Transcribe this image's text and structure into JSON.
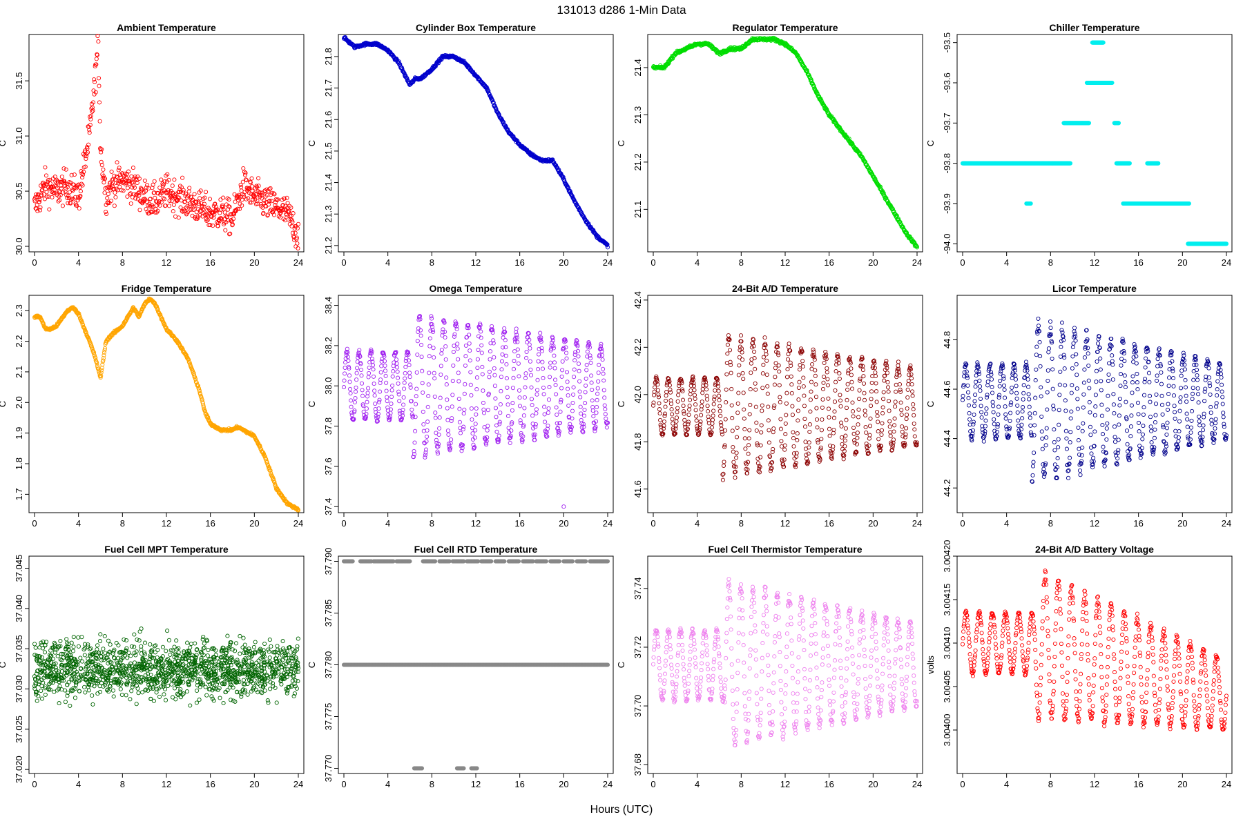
{
  "figure": {
    "title": "131013    d286    1-Min Data",
    "xlabel": "Hours (UTC)"
  },
  "chart_data": [
    {
      "type": "scatter",
      "title": "Ambient Temperature",
      "ylabel": "C",
      "color": "#ff0000",
      "xlim": [
        0,
        24
      ],
      "xticks": [
        0,
        4,
        8,
        12,
        16,
        20,
        24
      ],
      "ylim": [
        29.95,
        31.92
      ],
      "yticks": [
        30.0,
        30.5,
        31.0,
        31.5
      ],
      "yticklabels": [
        "30.0",
        "30.5",
        "31.0",
        "31.5"
      ],
      "series": [
        {
          "x": [
            0,
            1,
            2,
            3,
            4,
            5,
            5.5,
            5.8,
            6,
            6.5,
            7,
            8,
            9,
            10,
            11,
            12,
            13,
            14,
            15,
            16,
            17,
            18,
            19,
            20,
            21,
            22,
            23,
            24
          ],
          "y": [
            30.35,
            30.55,
            30.5,
            30.55,
            30.45,
            31.0,
            31.5,
            31.85,
            30.9,
            30.45,
            30.55,
            30.6,
            30.55,
            30.45,
            30.4,
            30.5,
            30.45,
            30.4,
            30.35,
            30.3,
            30.3,
            30.25,
            30.55,
            30.45,
            30.4,
            30.35,
            30.3,
            30.1
          ],
          "spread": 0.15
        }
      ]
    },
    {
      "type": "scatter",
      "title": "Cylinder Box Temperature",
      "ylabel": "C",
      "color": "#0000cc",
      "xlim": [
        0,
        24
      ],
      "xticks": [
        0,
        4,
        8,
        12,
        16,
        20,
        24
      ],
      "ylim": [
        21.18,
        21.87
      ],
      "yticks": [
        21.2,
        21.3,
        21.4,
        21.5,
        21.6,
        21.7,
        21.8
      ],
      "yticklabels": [
        "21.2",
        "21.3",
        "21.4",
        "21.5",
        "21.6",
        "21.7",
        "21.8"
      ],
      "series": [
        {
          "x": [
            0,
            1,
            2,
            3,
            4,
            5,
            6,
            6.5,
            7,
            8,
            9,
            10,
            11,
            12,
            13,
            14,
            15,
            16,
            17,
            18,
            19,
            20,
            21,
            22,
            23,
            24
          ],
          "y": [
            21.86,
            21.83,
            21.84,
            21.84,
            21.82,
            21.78,
            21.71,
            21.73,
            21.73,
            21.76,
            21.8,
            21.8,
            21.78,
            21.74,
            21.7,
            21.62,
            21.56,
            21.52,
            21.49,
            21.47,
            21.47,
            21.41,
            21.34,
            21.28,
            21.23,
            21.2
          ],
          "spread": 0.004
        }
      ]
    },
    {
      "type": "scatter",
      "title": "Regulator Temperature",
      "ylabel": "C",
      "color": "#00dd00",
      "xlim": [
        0,
        24
      ],
      "xticks": [
        0,
        4,
        8,
        12,
        16,
        20,
        24
      ],
      "ylim": [
        21.01,
        21.47
      ],
      "yticks": [
        21.1,
        21.2,
        21.3,
        21.4
      ],
      "yticklabels": [
        "21.1",
        "21.2",
        "21.3",
        "21.4"
      ],
      "series": [
        {
          "x": [
            0,
            1,
            2,
            3,
            4,
            5,
            6,
            7,
            8,
            9,
            10,
            11,
            12,
            13,
            14,
            15,
            16,
            17,
            18,
            19,
            20,
            21,
            22,
            23,
            24
          ],
          "y": [
            21.4,
            21.4,
            21.43,
            21.44,
            21.45,
            21.45,
            21.43,
            21.44,
            21.44,
            21.46,
            21.46,
            21.46,
            21.45,
            21.43,
            21.39,
            21.34,
            21.3,
            21.27,
            21.24,
            21.21,
            21.17,
            21.13,
            21.09,
            21.05,
            21.02
          ],
          "spread": 0.003
        }
      ]
    },
    {
      "type": "scatter",
      "title": "Chiller Temperature",
      "ylabel": "C",
      "color": "#00eeee",
      "xlim": [
        0,
        24
      ],
      "xticks": [
        0,
        4,
        8,
        12,
        16,
        20,
        24
      ],
      "ylim": [
        -94.02,
        -93.48
      ],
      "yticks": [
        -94.0,
        -93.9,
        -93.8,
        -93.7,
        -93.6,
        -93.5
      ],
      "yticklabels": [
        "-94.0",
        "-93.9",
        "-93.8",
        "-93.7",
        "-93.6",
        "-93.5"
      ],
      "segments": [
        {
          "x0": 0,
          "x1": 9.8,
          "y": -93.8
        },
        {
          "x0": 5.8,
          "x1": 6.2,
          "y": -93.9
        },
        {
          "x0": 9.2,
          "x1": 11.5,
          "y": -93.7
        },
        {
          "x0": 11.3,
          "x1": 12.2,
          "y": -93.6
        },
        {
          "x0": 11.8,
          "x1": 12.8,
          "y": -93.5
        },
        {
          "x0": 12.3,
          "x1": 13.6,
          "y": -93.6
        },
        {
          "x0": 13.8,
          "x1": 14.2,
          "y": -93.7
        },
        {
          "x0": 14.0,
          "x1": 15.2,
          "y": -93.8
        },
        {
          "x0": 14.6,
          "x1": 20.6,
          "y": -93.9
        },
        {
          "x0": 16.8,
          "x1": 17.8,
          "y": -93.8
        },
        {
          "x0": 20.5,
          "x1": 24,
          "y": -94.0
        }
      ]
    },
    {
      "type": "scatter",
      "title": "Fridge Temperature",
      "ylabel": "C",
      "color": "#ffa500",
      "xlim": [
        0,
        24
      ],
      "xticks": [
        0,
        4,
        8,
        12,
        16,
        20,
        24
      ],
      "ylim": [
        1.64,
        2.35
      ],
      "yticks": [
        1.7,
        1.8,
        1.9,
        2.0,
        2.1,
        2.2,
        2.3
      ],
      "yticklabels": [
        "1.7",
        "1.8",
        "1.9",
        "2.0",
        "2.1",
        "2.2",
        "2.3"
      ],
      "series": [
        {
          "x": [
            0,
            0.5,
            1,
            1.5,
            2,
            3,
            3.5,
            4,
            5,
            5.5,
            6,
            6.5,
            7,
            8,
            9,
            9.5,
            10,
            10.5,
            11,
            12,
            13,
            14,
            15,
            15.5,
            16,
            17,
            18,
            18.5,
            19,
            20,
            21,
            22,
            23,
            24
          ],
          "y": [
            2.28,
            2.28,
            2.24,
            2.24,
            2.25,
            2.3,
            2.31,
            2.29,
            2.2,
            2.15,
            2.08,
            2.2,
            2.22,
            2.25,
            2.31,
            2.28,
            2.32,
            2.34,
            2.32,
            2.24,
            2.2,
            2.14,
            2.04,
            1.97,
            1.93,
            1.91,
            1.91,
            1.92,
            1.91,
            1.89,
            1.82,
            1.72,
            1.67,
            1.65
          ],
          "spread": 0.004
        }
      ]
    },
    {
      "type": "scatter",
      "title": "Omega Temperature",
      "ylabel": "C",
      "color": "#a020f0",
      "xlim": [
        0,
        24
      ],
      "xticks": [
        0,
        4,
        8,
        12,
        16,
        20,
        24
      ],
      "ylim": [
        37.37,
        38.45
      ],
      "yticks": [
        37.4,
        37.6,
        37.8,
        38.0,
        38.2,
        38.4
      ],
      "yticklabels": [
        "37.4",
        "37.6",
        "37.8",
        "38.0",
        "38.2",
        "38.4"
      ],
      "oscillation": {
        "center": 38.0,
        "amp_early": 0.17,
        "amp_late": 0.35,
        "amp_end": 0.2,
        "period": 1.1,
        "change_at": 6.3
      },
      "outliers": [
        {
          "x": 20,
          "y": 37.4
        }
      ]
    },
    {
      "type": "scatter",
      "title": "24-Bit A/D Temperature",
      "ylabel": "C",
      "color": "#8b0000",
      "xlim": [
        0,
        24
      ],
      "xticks": [
        0,
        4,
        8,
        12,
        16,
        20,
        24
      ],
      "ylim": [
        41.5,
        42.42
      ],
      "yticks": [
        41.6,
        41.8,
        42.0,
        42.2,
        42.4
      ],
      "yticklabels": [
        "41.6",
        "41.8",
        "42.0",
        "42.2",
        "42.4"
      ],
      "oscillation": {
        "center": 41.95,
        "amp_early": 0.12,
        "amp_late": 0.3,
        "amp_end": 0.16,
        "period": 1.1,
        "change_at": 6.3
      }
    },
    {
      "type": "scatter",
      "title": "Licor Temperature",
      "ylabel": "C",
      "color": "#00008b",
      "xlim": [
        0,
        24
      ],
      "xticks": [
        0,
        4,
        8,
        12,
        16,
        20,
        24
      ],
      "ylim": [
        44.1,
        44.98
      ],
      "yticks": [
        44.2,
        44.4,
        44.6,
        44.8
      ],
      "yticklabels": [
        "44.2",
        "44.4",
        "44.6",
        "44.8"
      ],
      "oscillation": {
        "center": 44.55,
        "amp_early": 0.15,
        "amp_late": 0.32,
        "amp_end": 0.15,
        "period": 1.1,
        "change_at": 6.3
      }
    },
    {
      "type": "scatter",
      "title": "Fuel Cell MPT Temperature",
      "ylabel": "C",
      "color": "#006400",
      "xlim": [
        0,
        24
      ],
      "xticks": [
        0,
        4,
        8,
        12,
        16,
        20,
        24
      ],
      "ylim": [
        37.0195,
        37.0465
      ],
      "yticks": [
        37.02,
        37.025,
        37.03,
        37.035,
        37.04,
        37.045
      ],
      "yticklabels": [
        "37.020",
        "37.025",
        "37.030",
        "37.035",
        "37.040",
        "37.045"
      ],
      "noise": {
        "center": 37.0325,
        "sd": 0.0035
      }
    },
    {
      "type": "scatter",
      "title": "Fuel Cell RTD Temperature",
      "ylabel": "C",
      "color": "#888888",
      "xlim": [
        0,
        24
      ],
      "xticks": [
        0,
        4,
        8,
        12,
        16,
        20,
        24
      ],
      "ylim": [
        37.7695,
        37.7905
      ],
      "yticks": [
        37.77,
        37.775,
        37.78,
        37.785,
        37.79
      ],
      "yticklabels": [
        "37.770",
        "37.775",
        "37.780",
        "37.785",
        "37.790"
      ],
      "segments": [
        {
          "x0": 0,
          "x1": 24,
          "y": 37.78
        },
        {
          "x0": 0,
          "x1": 0.8,
          "y": 37.79
        },
        {
          "x0": 1.5,
          "x1": 2.5,
          "y": 37.79
        },
        {
          "x0": 2.7,
          "x1": 4.5,
          "y": 37.79
        },
        {
          "x0": 4.8,
          "x1": 6,
          "y": 37.79
        },
        {
          "x0": 7.2,
          "x1": 8.3,
          "y": 37.79
        },
        {
          "x0": 8.7,
          "x1": 9.6,
          "y": 37.79
        },
        {
          "x0": 9.9,
          "x1": 10.9,
          "y": 37.79
        },
        {
          "x0": 11.2,
          "x1": 12.2,
          "y": 37.79
        },
        {
          "x0": 12.5,
          "x1": 13.4,
          "y": 37.79
        },
        {
          "x0": 13.8,
          "x1": 14.6,
          "y": 37.79
        },
        {
          "x0": 15.0,
          "x1": 15.9,
          "y": 37.79
        },
        {
          "x0": 16.3,
          "x1": 17.2,
          "y": 37.79
        },
        {
          "x0": 17.5,
          "x1": 18.4,
          "y": 37.79
        },
        {
          "x0": 18.8,
          "x1": 19.6,
          "y": 37.79
        },
        {
          "x0": 20.0,
          "x1": 20.8,
          "y": 37.79
        },
        {
          "x0": 21.2,
          "x1": 22.0,
          "y": 37.79
        },
        {
          "x0": 22.4,
          "x1": 24,
          "y": 37.79
        },
        {
          "x0": 6.4,
          "x1": 7.1,
          "y": 37.77
        },
        {
          "x0": 10.3,
          "x1": 10.9,
          "y": 37.77
        },
        {
          "x0": 11.6,
          "x1": 12.1,
          "y": 37.77
        }
      ]
    },
    {
      "type": "scatter",
      "title": "Fuel Cell Thermistor Temperature",
      "ylabel": "C",
      "color": "#ee82ee",
      "xlim": [
        0,
        24
      ],
      "xticks": [
        0,
        4,
        8,
        12,
        16,
        20,
        24
      ],
      "ylim": [
        37.677,
        37.751
      ],
      "yticks": [
        37.68,
        37.7,
        37.72,
        37.74
      ],
      "yticklabels": [
        "37.68",
        "37.70",
        "37.72",
        "37.74"
      ],
      "oscillation": {
        "center": 37.714,
        "amp_early": 0.012,
        "amp_late": 0.028,
        "amp_end": 0.014,
        "period": 1.1,
        "change_at": 6.5
      }
    },
    {
      "type": "scatter",
      "title": "24-Bit A/D Battery Voltage",
      "ylabel": "volts",
      "color": "#ff0000",
      "xlim": [
        0,
        24
      ],
      "xticks": [
        0,
        4,
        8,
        12,
        16,
        20,
        24
      ],
      "ylim": [
        3.00395,
        3.0042
      ],
      "yticks": [
        3.004,
        3.00405,
        3.0041,
        3.00415,
        3.0042
      ],
      "yticklabels": [
        "3.00400",
        "3.00405",
        "3.00410",
        "3.00415",
        "3.00420"
      ],
      "oscillation": {
        "center": 3.0041,
        "amp_early": 3.5e-05,
        "amp_late": 8.5e-05,
        "amp_end": 4e-05,
        "period": 1.2,
        "change_at": 6.6,
        "center_end": 3.00404
      }
    }
  ]
}
